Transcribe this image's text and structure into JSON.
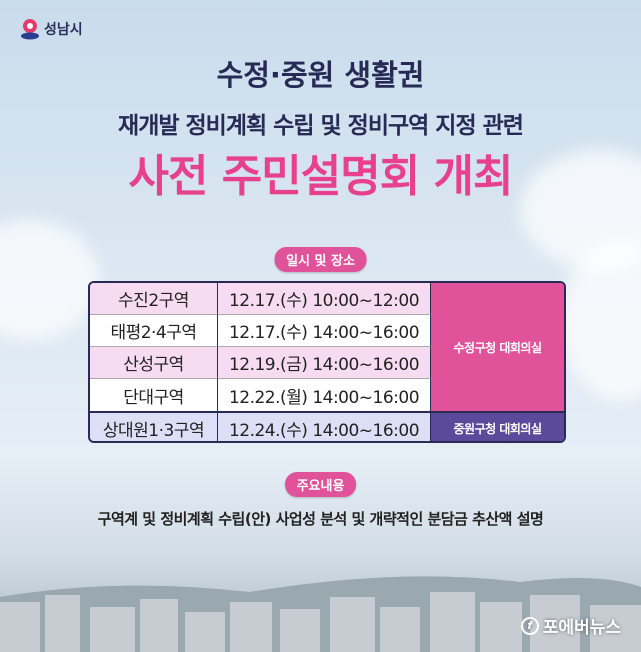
{
  "logo": {
    "name": "성남시"
  },
  "title": {
    "line1": "수정·중원 생활권",
    "line2": "재개발 정비계획 수립 및 정비구역 지정 관련",
    "line3": "사전 주민설명회 개최"
  },
  "schedule": {
    "badge": "일시 및 장소",
    "rows": [
      {
        "area": "수진2구역",
        "datetime": "12.17.(수) 10:00~12:00"
      },
      {
        "area": "태평2·4구역",
        "datetime": "12.17.(수) 14:00~16:00"
      },
      {
        "area": "산성구역",
        "datetime": "12.19.(금) 14:00~16:00"
      },
      {
        "area": "단대구역",
        "datetime": "12.22.(월) 14:00~16:00"
      },
      {
        "area": "상대원1·3구역",
        "datetime": "12.24.(수) 14:00~16:00"
      }
    ],
    "venue1": "수정구청 대회의실",
    "venue2": "중원구청 대회의실"
  },
  "content": {
    "badge": "주요내용",
    "text": "구역계 및 정비계획 수립(안) 사업성 분석 및 개략적인 분담금 추산액 설명"
  },
  "watermark": "포에버뉴스",
  "colors": {
    "navy": "#262a55",
    "pink": "#e0529a",
    "purple": "#5b4a9c"
  }
}
